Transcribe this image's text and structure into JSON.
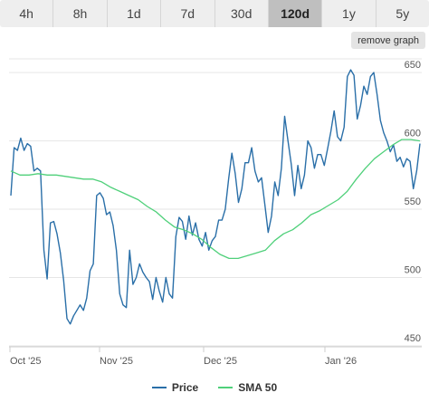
{
  "ranges": [
    {
      "label": "4h",
      "active": false
    },
    {
      "label": "8h",
      "active": false
    },
    {
      "label": "1d",
      "active": false
    },
    {
      "label": "7d",
      "active": false
    },
    {
      "label": "30d",
      "active": false
    },
    {
      "label": "120d",
      "active": true
    },
    {
      "label": "1y",
      "active": false
    },
    {
      "label": "5y",
      "active": false
    }
  ],
  "remove_graph_label": "remove graph",
  "colors": {
    "price": "#2a6fa8",
    "sma": "#4fd07a",
    "grid": "#e6e6e6",
    "active_tab": "#bfbfbf"
  },
  "chart_data": {
    "type": "line",
    "x_ticks": [
      "Oct '25",
      "Nov '25",
      "Dec '25",
      "Jan '26"
    ],
    "y_ticks": [
      450,
      500,
      550,
      600,
      650
    ],
    "ylim": [
      450,
      660
    ],
    "grid": "horizontal",
    "legend_position": "bottom",
    "series": [
      {
        "name": "Price",
        "values": [
          560,
          595,
          593,
          602,
          593,
          598,
          596,
          578,
          580,
          578,
          520,
          499,
          540,
          541,
          532,
          518,
          498,
          470,
          466,
          472,
          476,
          480,
          476,
          485,
          505,
          510,
          560,
          562,
          558,
          546,
          548,
          538,
          520,
          488,
          480,
          478,
          520,
          495,
          500,
          510,
          504,
          500,
          497,
          484,
          500,
          490,
          482,
          500,
          488,
          485,
          530,
          544,
          541,
          528,
          545,
          531,
          540,
          528,
          523,
          533,
          520,
          527,
          530,
          542,
          542,
          550,
          572,
          591,
          576,
          555,
          565,
          584,
          584,
          595,
          578,
          570,
          573,
          553,
          533,
          545,
          570,
          560,
          580,
          618,
          600,
          583,
          560,
          582,
          565,
          575,
          600,
          595,
          580,
          590,
          590,
          582,
          594,
          607,
          622,
          603,
          600,
          610,
          647,
          652,
          648,
          616,
          626,
          640,
          634,
          647,
          650,
          634,
          615,
          606,
          600,
          592,
          597,
          585,
          588,
          581,
          587,
          585,
          565,
          578,
          598
        ]
      },
      {
        "name": "SMA 50",
        "values": [
          578,
          575,
          575,
          576,
          575,
          575,
          574,
          573,
          572,
          572,
          570,
          566,
          563,
          560,
          557,
          552,
          548,
          542,
          537,
          535,
          532,
          528,
          522,
          517,
          514,
          514,
          516,
          518,
          520,
          527,
          532,
          535,
          540,
          546,
          549,
          553,
          557,
          563,
          572,
          580,
          587,
          592,
          597,
          601,
          601,
          600
        ]
      }
    ]
  }
}
